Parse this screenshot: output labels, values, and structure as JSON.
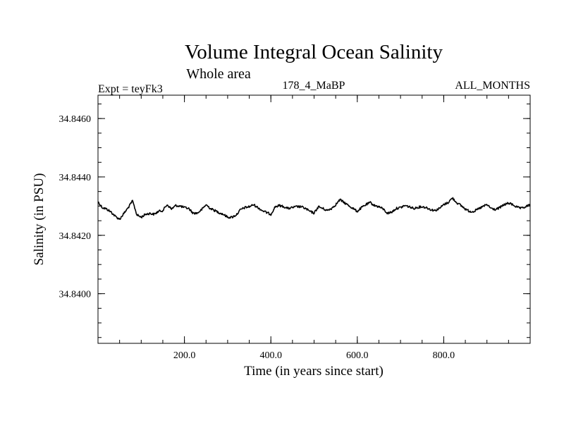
{
  "chart_data": {
    "type": "line",
    "title": "Volume Integral Ocean Salinity",
    "subtitle": "Whole area",
    "header_left": "Expt = teyFk3",
    "header_center": "178_4_MaBP",
    "header_right": "ALL_MONTHS",
    "xlabel": "Time (in years since start)",
    "ylabel": "Salinity (in PSU)",
    "xlim": [
      0,
      1000
    ],
    "ylim": [
      34.8383,
      34.8468
    ],
    "x_tick_labels": [
      "200.0",
      "400.0",
      "600.0",
      "800.0"
    ],
    "x_ticks": [
      200,
      400,
      600,
      800
    ],
    "x_minor_step": 50,
    "y_tick_labels": [
      "34.8400",
      "34.8420",
      "34.8440",
      "34.8460"
    ],
    "y_ticks": [
      34.84,
      34.842,
      34.844,
      34.846
    ],
    "y_minor_step": 0.0005,
    "grid": false,
    "series": [
      {
        "name": "teyFk3",
        "color": "#000000",
        "x": [
          0,
          10,
          20,
          30,
          40,
          50,
          60,
          70,
          80,
          90,
          100,
          110,
          120,
          130,
          140,
          150,
          160,
          170,
          180,
          190,
          200,
          210,
          220,
          230,
          240,
          250,
          260,
          270,
          280,
          290,
          300,
          310,
          320,
          330,
          340,
          350,
          360,
          370,
          380,
          390,
          400,
          410,
          420,
          430,
          440,
          450,
          460,
          470,
          480,
          490,
          500,
          510,
          520,
          530,
          540,
          550,
          560,
          570,
          580,
          590,
          600,
          610,
          620,
          630,
          640,
          650,
          660,
          670,
          680,
          690,
          700,
          710,
          720,
          730,
          740,
          750,
          760,
          770,
          780,
          790,
          800,
          810,
          820,
          830,
          840,
          850,
          860,
          870,
          880,
          890,
          900,
          910,
          920,
          930,
          940,
          950,
          960,
          970,
          980,
          990,
          1000
        ],
        "values": [
          34.84315,
          34.84295,
          34.8429,
          34.8428,
          34.84265,
          34.84255,
          34.84275,
          34.84295,
          34.84318,
          34.8427,
          34.84262,
          34.84272,
          34.84275,
          34.84272,
          34.84282,
          34.84285,
          34.84305,
          34.8429,
          34.84302,
          34.843,
          34.84295,
          34.84292,
          34.84276,
          34.84276,
          34.84288,
          34.84305,
          34.84292,
          34.84285,
          34.84278,
          34.84272,
          34.84262,
          34.84262,
          34.8427,
          34.84288,
          34.84295,
          34.84298,
          34.84305,
          34.84295,
          34.84285,
          34.84278,
          34.84272,
          34.84298,
          34.84302,
          34.84298,
          34.84292,
          34.84295,
          34.84298,
          34.84298,
          34.84292,
          34.84282,
          34.84276,
          34.84298,
          34.84292,
          34.84285,
          34.84292,
          34.84305,
          34.84322,
          34.84312,
          34.84302,
          34.84292,
          34.84282,
          34.84295,
          34.84305,
          34.84312,
          34.84302,
          34.84298,
          34.8429,
          34.84275,
          34.8428,
          34.84292,
          34.84295,
          34.84302,
          34.84298,
          34.84292,
          34.84296,
          34.84298,
          34.84295,
          34.84288,
          34.84285,
          34.84292,
          34.84305,
          34.84312,
          34.84328,
          34.84312,
          34.84302,
          34.8429,
          34.84282,
          34.84282,
          34.8429,
          34.84298,
          34.84305,
          34.84292,
          34.84288,
          34.84295,
          34.84305,
          34.8431,
          34.84305,
          34.84296,
          34.84292,
          34.84298,
          34.84305
        ]
      }
    ]
  }
}
